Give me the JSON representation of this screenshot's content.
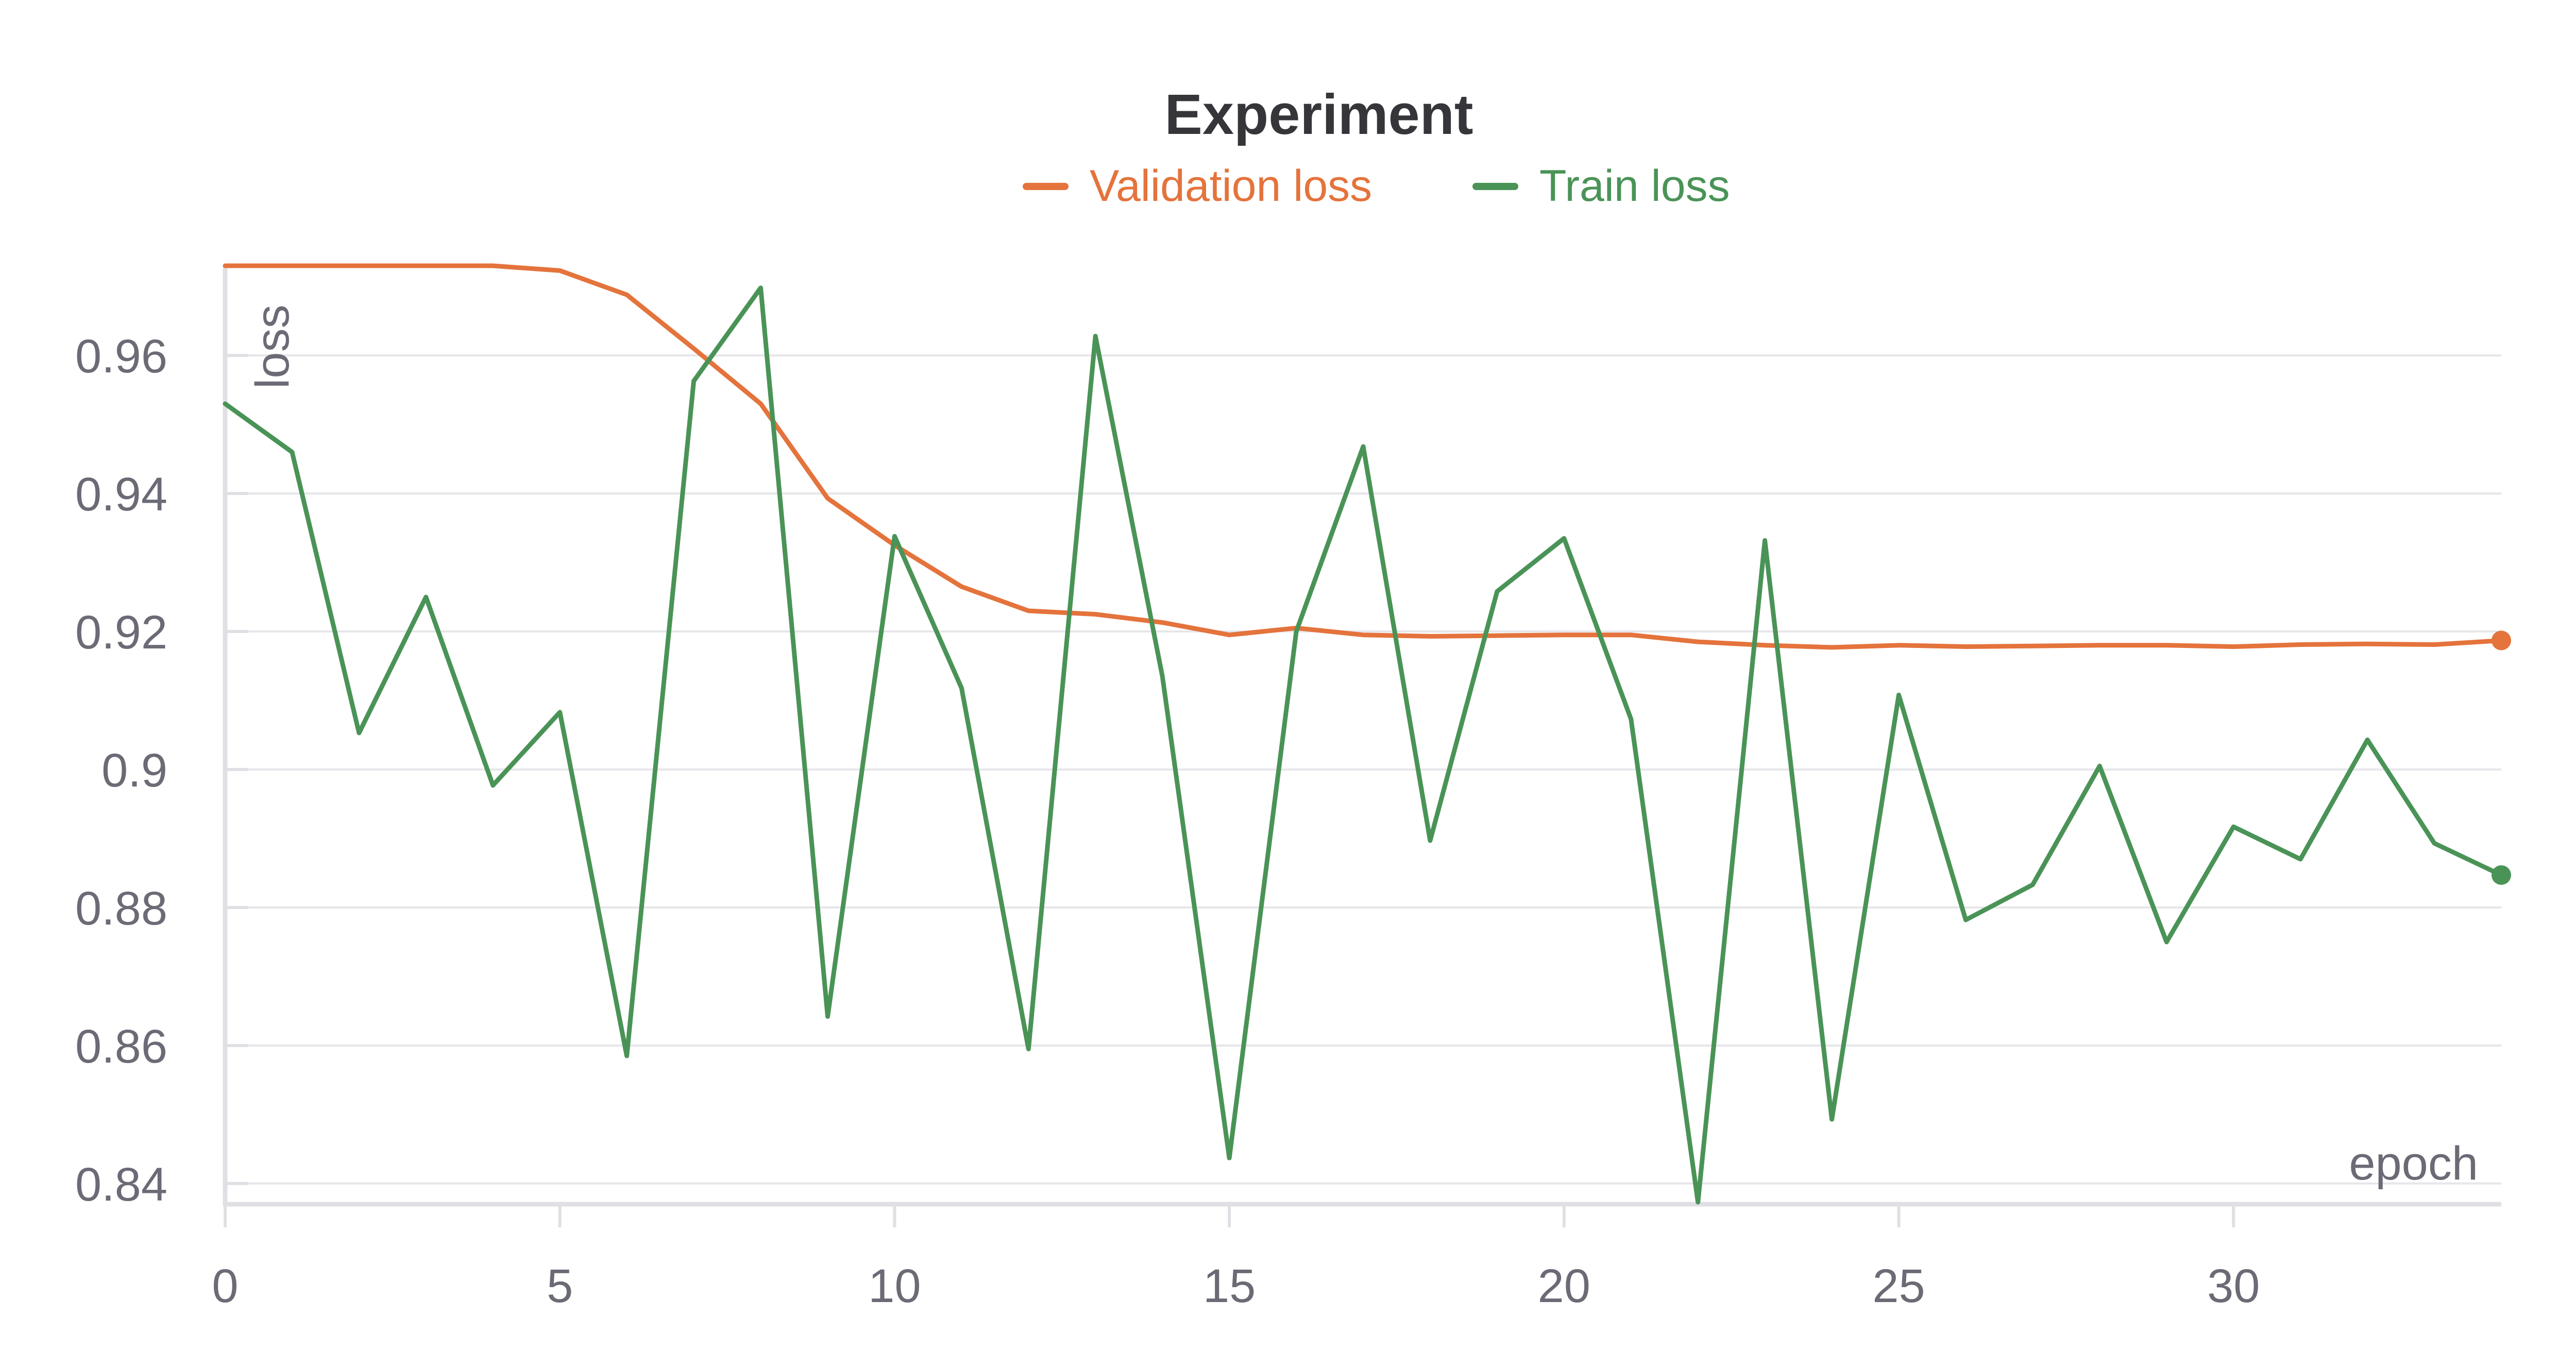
{
  "chart_data": {
    "type": "line",
    "title": "Experiment",
    "xlabel": "epoch",
    "ylabel": "loss",
    "xlim": [
      0,
      34
    ],
    "ylim": [
      0.837,
      0.973
    ],
    "x_ticks": [
      0,
      5,
      10,
      15,
      20,
      25,
      30
    ],
    "y_ticks": [
      0.84,
      0.86,
      0.88,
      0.9,
      0.92,
      0.94,
      0.96
    ],
    "y_tick_labels": [
      "0.84",
      "0.86",
      "0.88",
      "0.9",
      "0.92",
      "0.94",
      "0.96"
    ],
    "grid": true,
    "legend_position": "top-center",
    "x": [
      0,
      1,
      2,
      3,
      4,
      5,
      6,
      7,
      8,
      9,
      10,
      11,
      12,
      13,
      14,
      15,
      16,
      17,
      18,
      19,
      20,
      21,
      22,
      23,
      24,
      25,
      26,
      27,
      28,
      29,
      30,
      31,
      32,
      33,
      34
    ],
    "series": [
      {
        "name": "Validation loss",
        "color": "#e4733c",
        "values": [
          0.973,
          0.973,
          0.973,
          0.973,
          0.973,
          0.9723,
          0.9688,
          0.961,
          0.953,
          0.9393,
          0.9325,
          0.9265,
          0.923,
          0.9225,
          0.9213,
          0.9195,
          0.9205,
          0.9195,
          0.9193,
          0.9194,
          0.9195,
          0.9195,
          0.9185,
          0.918,
          0.9177,
          0.918,
          0.9178,
          0.9179,
          0.918,
          0.918,
          0.9178,
          0.9181,
          0.9182,
          0.9181,
          0.9187
        ]
      },
      {
        "name": "Train loss",
        "color": "#4a9357",
        "values": [
          0.953,
          0.946,
          0.9053,
          0.925,
          0.8977,
          0.9083,
          0.8585,
          0.9563,
          0.9698,
          0.8642,
          0.9338,
          0.9118,
          0.8595,
          0.9628,
          0.9135,
          0.8437,
          0.92,
          0.9468,
          0.8897,
          0.9258,
          0.9335,
          0.9073,
          0.8373,
          0.9332,
          0.8493,
          0.9108,
          0.8782,
          0.8833,
          0.9005,
          0.875,
          0.8917,
          0.887,
          0.9043,
          0.8893,
          0.8847
        ]
      }
    ]
  }
}
